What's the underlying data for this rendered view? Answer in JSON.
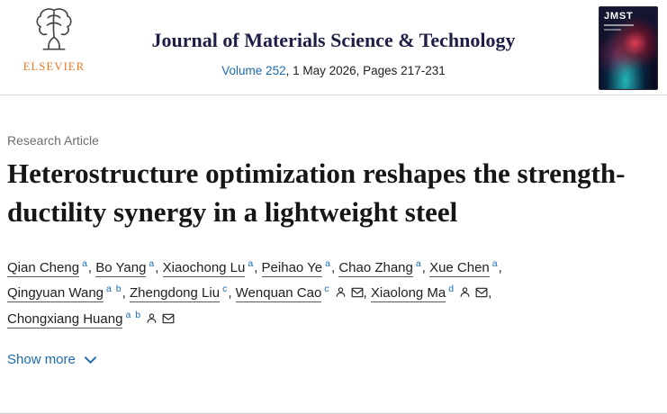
{
  "header": {
    "publisher": "ELSEVIER",
    "journal_title": "Journal of Materials Science & Technology",
    "volume_link": "Volume 252",
    "issue_details": ", 1 May 2026, Pages 217-231",
    "cover_title": "JMST"
  },
  "article": {
    "type_label": "Research Article",
    "title": "Heterostructure optimization reshapes the strength-ductility synergy in a lightweight steel",
    "show_more_label": "Show more",
    "authors": [
      {
        "name": "Qian Cheng",
        "sup": "a",
        "icons": []
      },
      {
        "name": "Bo Yang",
        "sup": "a",
        "icons": []
      },
      {
        "name": "Xiaochong Lu",
        "sup": "a",
        "icons": []
      },
      {
        "name": "Peihao Ye",
        "sup": "a",
        "icons": []
      },
      {
        "name": "Chao Zhang",
        "sup": "a",
        "icons": []
      },
      {
        "name": "Xue Chen",
        "sup": "a",
        "icons": []
      },
      {
        "name": "Qingyuan Wang",
        "sup": "a b",
        "icons": []
      },
      {
        "name": "Zhengdong Liu",
        "sup": "c",
        "icons": []
      },
      {
        "name": "Wenquan Cao",
        "sup": "c",
        "icons": [
          "person",
          "envelope"
        ]
      },
      {
        "name": "Xiaolong Ma",
        "sup": "d",
        "icons": [
          "person",
          "envelope"
        ]
      },
      {
        "name": "Chongxiang Huang",
        "sup": "a b",
        "icons": [
          "person",
          "envelope"
        ]
      }
    ]
  },
  "colors": {
    "link_blue": "#1b6aae",
    "elsevier_orange": "#e87722",
    "journal_title_color": "#1e1e46",
    "text_dark": "#212121",
    "muted_gray": "#6e6e6e"
  }
}
